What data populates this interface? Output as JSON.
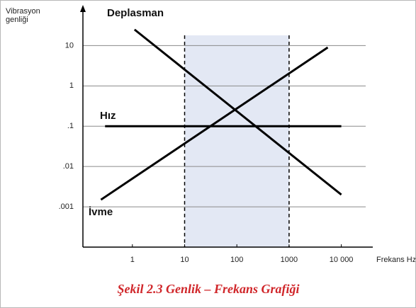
{
  "chart_data": {
    "type": "line",
    "ylabel": "Vibrasyon genliği",
    "xlabel": "Frekans Hz",
    "caption": "Şekil 2.3 Genlik – Frekans Grafiği",
    "log_x": true,
    "log_y": true,
    "grid": true,
    "xlim": [
      0.113,
      40000
    ],
    "ylim": [
      0.0001,
      80
    ],
    "xticks": [
      1,
      10,
      100,
      1000,
      {
        "value": 10000,
        "label": "10 000"
      }
    ],
    "yticks": [
      {
        "value": 0.001,
        "label": ".001"
      },
      {
        "value": 0.01,
        "label": ".01"
      },
      {
        "value": 0.1,
        "label": ".1"
      },
      1,
      10
    ],
    "highlight": {
      "x": [
        10,
        1000
      ],
      "top": 18,
      "color": "#e3e8f4"
    },
    "series": [
      {
        "name": "Deplasman",
        "color": "#000000",
        "x": [
          1.1,
          10000
        ],
        "values": [
          25,
          0.002
        ]
      },
      {
        "name": "Hız",
        "color": "#000000",
        "x": [
          0.3,
          10000
        ],
        "values": [
          0.1,
          0.1
        ]
      },
      {
        "name": "İvme",
        "color": "#000000",
        "x": [
          0.25,
          5500
        ],
        "values": [
          0.0015,
          9
        ]
      }
    ]
  }
}
